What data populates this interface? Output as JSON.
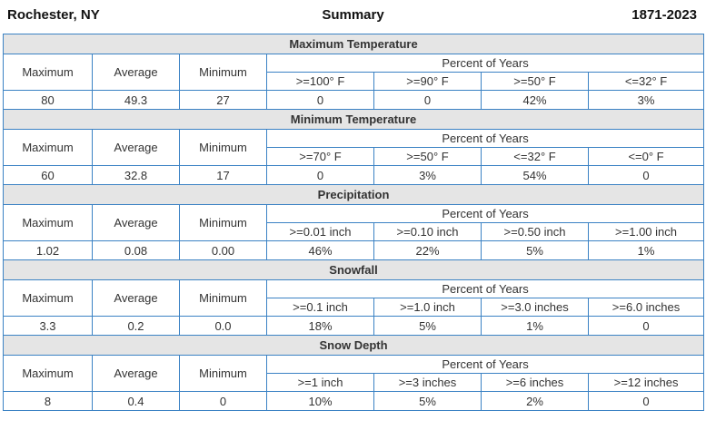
{
  "header": {
    "location": "Rochester, NY",
    "title": "Summary",
    "years": "1871-2023"
  },
  "labels": {
    "maximum": "Maximum",
    "average": "Average",
    "minimum": "Minimum",
    "percent_of_years": "Percent of Years"
  },
  "sections": [
    {
      "title": "Maximum Temperature",
      "thresholds": [
        ">=100° F",
        ">=90° F",
        ">=50° F",
        "<=32° F"
      ],
      "max": "80",
      "avg": "49.3",
      "min": "27",
      "percents": [
        "0",
        "0",
        "42%",
        "3%"
      ]
    },
    {
      "title": "Minimum Temperature",
      "thresholds": [
        ">=70° F",
        ">=50° F",
        "<=32° F",
        "<=0° F"
      ],
      "max": "60",
      "avg": "32.8",
      "min": "17",
      "percents": [
        "0",
        "3%",
        "54%",
        "0"
      ]
    },
    {
      "title": "Precipitation",
      "thresholds": [
        ">=0.01 inch",
        ">=0.10 inch",
        ">=0.50 inch",
        ">=1.00 inch"
      ],
      "max": "1.02",
      "avg": "0.08",
      "min": "0.00",
      "percents": [
        "46%",
        "22%",
        "5%",
        "1%"
      ]
    },
    {
      "title": "Snowfall",
      "thresholds": [
        ">=0.1 inch",
        ">=1.0 inch",
        ">=3.0 inches",
        ">=6.0 inches"
      ],
      "max": "3.3",
      "avg": "0.2",
      "min": "0.0",
      "percents": [
        "18%",
        "5%",
        "1%",
        "0"
      ]
    },
    {
      "title": "Snow Depth",
      "thresholds": [
        ">=1 inch",
        ">=3 inches",
        ">=6 inches",
        ">=12 inches"
      ],
      "max": "8",
      "avg": "0.4",
      "min": "0",
      "percents": [
        "10%",
        "5%",
        "2%",
        "0"
      ]
    }
  ]
}
